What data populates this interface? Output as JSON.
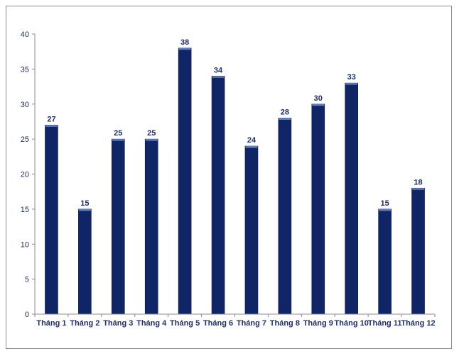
{
  "chart_data": {
    "type": "bar",
    "categories": [
      "Tháng 1",
      "Tháng 2",
      "Tháng 3",
      "Tháng 4",
      "Tháng 5",
      "Tháng 6",
      "Tháng 7",
      "Tháng 8",
      "Tháng 9",
      "Tháng 10",
      "Tháng 11",
      "Tháng 12"
    ],
    "values": [
      27,
      15,
      25,
      25,
      38,
      34,
      24,
      28,
      30,
      33,
      15,
      18
    ],
    "yticks": [
      0,
      5,
      10,
      15,
      20,
      25,
      30,
      35,
      40
    ],
    "ylim": [
      0,
      40
    ],
    "title": "",
    "xlabel": "",
    "ylabel": "",
    "grid": false,
    "legend": "none",
    "data_labels": true,
    "colors": {
      "bar": "#0f2566",
      "bar_edge": "#0a1a4d",
      "bar_top": "#5d7ec4",
      "axis": "#8c8c8c",
      "text": "#1f2f6b"
    }
  }
}
